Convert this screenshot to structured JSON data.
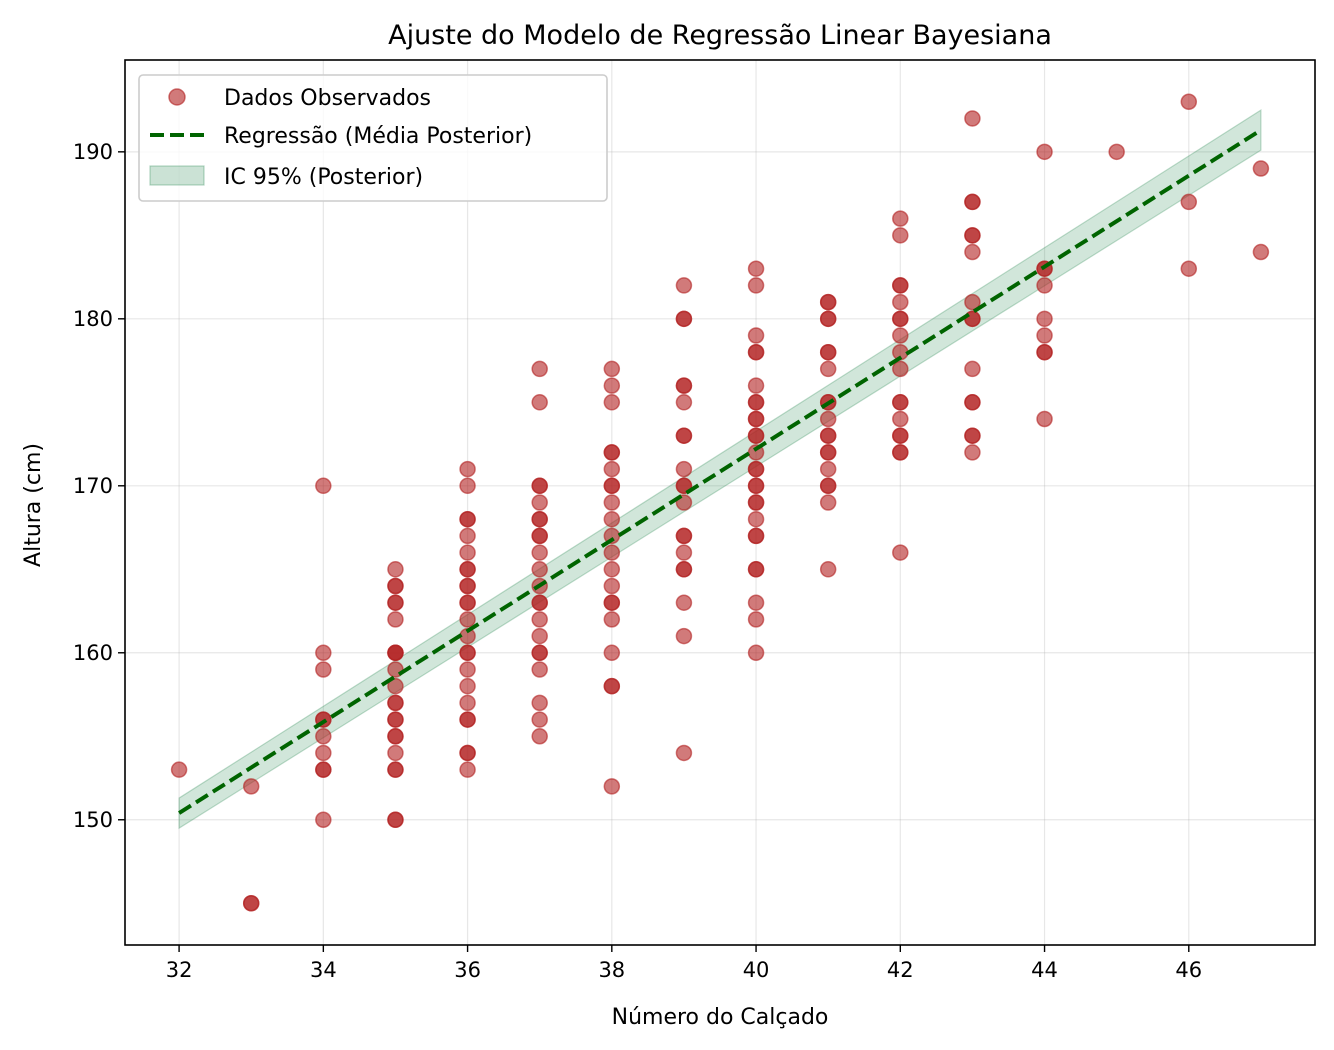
{
  "chart_data": {
    "type": "scatter",
    "title": "Ajuste do Modelo de Regressão Linear Bayesiana",
    "xlabel": "Número do Calçado",
    "ylabel": "Altura (cm)",
    "xlim": [
      31.25,
      47.75
    ],
    "ylim": [
      142.5,
      195.5
    ],
    "xticks": [
      32,
      34,
      36,
      38,
      40,
      42,
      44,
      46
    ],
    "yticks": [
      150,
      160,
      170,
      180,
      190
    ],
    "grid": true,
    "legend_position": "top-left",
    "series": [
      {
        "name": "Dados Observados",
        "kind": "scatter",
        "color": "#b22222",
        "points": [
          [
            32,
            153
          ],
          [
            33,
            152
          ],
          [
            33,
            145
          ],
          [
            33,
            145
          ],
          [
            34,
            170
          ],
          [
            34,
            160
          ],
          [
            34,
            159
          ],
          [
            34,
            156
          ],
          [
            34,
            156
          ],
          [
            34,
            155
          ],
          [
            34,
            154
          ],
          [
            34,
            153
          ],
          [
            34,
            153
          ],
          [
            34,
            150
          ],
          [
            35,
            165
          ],
          [
            35,
            164
          ],
          [
            35,
            164
          ],
          [
            35,
            163
          ],
          [
            35,
            163
          ],
          [
            35,
            162
          ],
          [
            35,
            160
          ],
          [
            35,
            160
          ],
          [
            35,
            160
          ],
          [
            35,
            159
          ],
          [
            35,
            158
          ],
          [
            35,
            157
          ],
          [
            35,
            157
          ],
          [
            35,
            156
          ],
          [
            35,
            156
          ],
          [
            35,
            155
          ],
          [
            35,
            155
          ],
          [
            35,
            154
          ],
          [
            35,
            153
          ],
          [
            35,
            153
          ],
          [
            35,
            150
          ],
          [
            35,
            150
          ],
          [
            36,
            171
          ],
          [
            36,
            170
          ],
          [
            36,
            168
          ],
          [
            36,
            168
          ],
          [
            36,
            167
          ],
          [
            36,
            166
          ],
          [
            36,
            165
          ],
          [
            36,
            165
          ],
          [
            36,
            164
          ],
          [
            36,
            164
          ],
          [
            36,
            163
          ],
          [
            36,
            163
          ],
          [
            36,
            162
          ],
          [
            36,
            161
          ],
          [
            36,
            160
          ],
          [
            36,
            160
          ],
          [
            36,
            159
          ],
          [
            36,
            158
          ],
          [
            36,
            157
          ],
          [
            36,
            156
          ],
          [
            36,
            156
          ],
          [
            36,
            154
          ],
          [
            36,
            154
          ],
          [
            36,
            153
          ],
          [
            37,
            177
          ],
          [
            37,
            175
          ],
          [
            37,
            170
          ],
          [
            37,
            170
          ],
          [
            37,
            169
          ],
          [
            37,
            168
          ],
          [
            37,
            168
          ],
          [
            37,
            167
          ],
          [
            37,
            167
          ],
          [
            37,
            166
          ],
          [
            37,
            165
          ],
          [
            37,
            164
          ],
          [
            37,
            163
          ],
          [
            37,
            163
          ],
          [
            37,
            162
          ],
          [
            37,
            161
          ],
          [
            37,
            160
          ],
          [
            37,
            160
          ],
          [
            37,
            159
          ],
          [
            37,
            157
          ],
          [
            37,
            156
          ],
          [
            37,
            155
          ],
          [
            38,
            177
          ],
          [
            38,
            176
          ],
          [
            38,
            175
          ],
          [
            38,
            172
          ],
          [
            38,
            172
          ],
          [
            38,
            171
          ],
          [
            38,
            170
          ],
          [
            38,
            170
          ],
          [
            38,
            169
          ],
          [
            38,
            168
          ],
          [
            38,
            167
          ],
          [
            38,
            166
          ],
          [
            38,
            165
          ],
          [
            38,
            164
          ],
          [
            38,
            163
          ],
          [
            38,
            163
          ],
          [
            38,
            162
          ],
          [
            38,
            160
          ],
          [
            38,
            158
          ],
          [
            38,
            158
          ],
          [
            38,
            152
          ],
          [
            39,
            182
          ],
          [
            39,
            180
          ],
          [
            39,
            180
          ],
          [
            39,
            176
          ],
          [
            39,
            176
          ],
          [
            39,
            175
          ],
          [
            39,
            173
          ],
          [
            39,
            173
          ],
          [
            39,
            171
          ],
          [
            39,
            170
          ],
          [
            39,
            170
          ],
          [
            39,
            169
          ],
          [
            39,
            167
          ],
          [
            39,
            167
          ],
          [
            39,
            166
          ],
          [
            39,
            165
          ],
          [
            39,
            165
          ],
          [
            39,
            163
          ],
          [
            39,
            161
          ],
          [
            39,
            154
          ],
          [
            40,
            183
          ],
          [
            40,
            182
          ],
          [
            40,
            179
          ],
          [
            40,
            178
          ],
          [
            40,
            178
          ],
          [
            40,
            176
          ],
          [
            40,
            175
          ],
          [
            40,
            175
          ],
          [
            40,
            174
          ],
          [
            40,
            174
          ],
          [
            40,
            173
          ],
          [
            40,
            173
          ],
          [
            40,
            172
          ],
          [
            40,
            171
          ],
          [
            40,
            171
          ],
          [
            40,
            170
          ],
          [
            40,
            170
          ],
          [
            40,
            169
          ],
          [
            40,
            169
          ],
          [
            40,
            168
          ],
          [
            40,
            167
          ],
          [
            40,
            167
          ],
          [
            40,
            165
          ],
          [
            40,
            165
          ],
          [
            40,
            163
          ],
          [
            40,
            162
          ],
          [
            40,
            160
          ],
          [
            41,
            181
          ],
          [
            41,
            181
          ],
          [
            41,
            180
          ],
          [
            41,
            180
          ],
          [
            41,
            178
          ],
          [
            41,
            178
          ],
          [
            41,
            177
          ],
          [
            41,
            175
          ],
          [
            41,
            175
          ],
          [
            41,
            174
          ],
          [
            41,
            173
          ],
          [
            41,
            173
          ],
          [
            41,
            172
          ],
          [
            41,
            172
          ],
          [
            41,
            171
          ],
          [
            41,
            170
          ],
          [
            41,
            170
          ],
          [
            41,
            169
          ],
          [
            41,
            165
          ],
          [
            42,
            186
          ],
          [
            42,
            185
          ],
          [
            42,
            182
          ],
          [
            42,
            182
          ],
          [
            42,
            181
          ],
          [
            42,
            180
          ],
          [
            42,
            180
          ],
          [
            42,
            179
          ],
          [
            42,
            178
          ],
          [
            42,
            177
          ],
          [
            42,
            175
          ],
          [
            42,
            175
          ],
          [
            42,
            174
          ],
          [
            42,
            173
          ],
          [
            42,
            173
          ],
          [
            42,
            172
          ],
          [
            42,
            172
          ],
          [
            42,
            166
          ],
          [
            43,
            192
          ],
          [
            43,
            187
          ],
          [
            43,
            187
          ],
          [
            43,
            185
          ],
          [
            43,
            185
          ],
          [
            43,
            184
          ],
          [
            43,
            181
          ],
          [
            43,
            180
          ],
          [
            43,
            180
          ],
          [
            43,
            177
          ],
          [
            43,
            175
          ],
          [
            43,
            175
          ],
          [
            43,
            173
          ],
          [
            43,
            173
          ],
          [
            43,
            172
          ],
          [
            44,
            190
          ],
          [
            44,
            183
          ],
          [
            44,
            183
          ],
          [
            44,
            182
          ],
          [
            44,
            180
          ],
          [
            44,
            179
          ],
          [
            44,
            178
          ],
          [
            44,
            178
          ],
          [
            44,
            174
          ],
          [
            45,
            190
          ],
          [
            46,
            193
          ],
          [
            46,
            187
          ],
          [
            46,
            183
          ],
          [
            47,
            189
          ],
          [
            47,
            184
          ]
        ]
      },
      {
        "name": "Regressão (Média Posterior)",
        "kind": "line",
        "color": "#006400",
        "style": "dashed",
        "x": [
          32,
          47
        ],
        "y": [
          150.4,
          191.3
        ]
      },
      {
        "name": "IC 95% (Posterior)",
        "kind": "band",
        "color": "#2e8b57",
        "x": [
          32,
          47
        ],
        "lower": [
          149.5,
          190.1
        ],
        "upper": [
          151.3,
          192.5
        ]
      }
    ]
  }
}
